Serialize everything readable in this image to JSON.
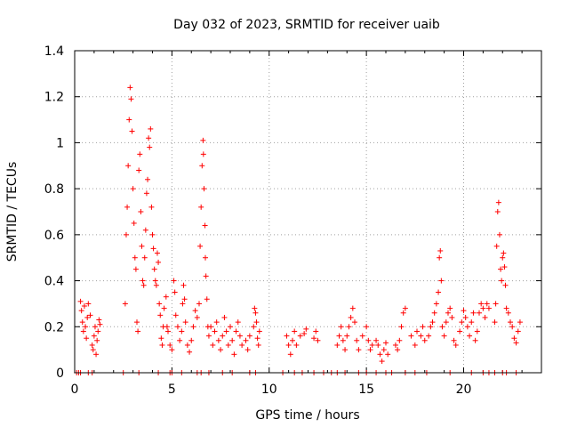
{
  "chart_data": {
    "type": "scatter",
    "title": "Day 032 of 2023, SRMTID for receiver uaib",
    "xlabel": "GPS time / hours",
    "ylabel": "SRMTID / TECUs",
    "xlim": [
      0,
      24
    ],
    "ylim": [
      0,
      1.4
    ],
    "xticks": [
      0,
      5,
      10,
      15,
      20
    ],
    "yticks": [
      0,
      0.2,
      0.4,
      0.6,
      0.8,
      1,
      1.2,
      1.4
    ],
    "xtick_labels": [
      "0",
      "5",
      "10",
      "15",
      "20"
    ],
    "ytick_labels": [
      "0",
      "0.2",
      "0.4",
      "0.6",
      "0.8",
      "1",
      "1.2",
      "1.4"
    ],
    "grid": true,
    "marker": "+",
    "color": "#ff0000",
    "series": [
      {
        "name": "SRMTID",
        "points": [
          [
            0.1,
            0
          ],
          [
            0.2,
            0
          ],
          [
            0.3,
            0
          ],
          [
            0.7,
            0
          ],
          [
            0.9,
            0
          ],
          [
            2.5,
            0
          ],
          [
            3.3,
            0
          ],
          [
            4.3,
            0
          ],
          [
            4.9,
            0
          ],
          [
            5.0,
            0
          ],
          [
            5.5,
            0
          ],
          [
            6.3,
            0
          ],
          [
            6.5,
            0
          ],
          [
            6.9,
            0
          ],
          [
            7.6,
            0
          ],
          [
            8.1,
            0
          ],
          [
            9.0,
            0
          ],
          [
            9.3,
            0
          ],
          [
            10.7,
            0
          ],
          [
            11.3,
            0
          ],
          [
            11.7,
            0
          ],
          [
            12.3,
            0
          ],
          [
            12.8,
            0
          ],
          [
            13.2,
            0
          ],
          [
            13.5,
            0
          ],
          [
            13.9,
            0
          ],
          [
            14.6,
            0
          ],
          [
            15.0,
            0
          ],
          [
            15.5,
            0
          ],
          [
            16.0,
            0
          ],
          [
            16.3,
            0
          ],
          [
            17.0,
            0
          ],
          [
            17.5,
            0
          ],
          [
            18.1,
            0
          ],
          [
            19.3,
            0
          ],
          [
            20.4,
            0
          ],
          [
            21.0,
            0
          ],
          [
            21.3,
            0
          ],
          [
            21.6,
            0
          ],
          [
            22.0,
            0
          ],
          [
            22.2,
            0
          ],
          [
            22.7,
            0
          ],
          [
            0.3,
            0.31
          ],
          [
            0.35,
            0.27
          ],
          [
            0.4,
            0.22
          ],
          [
            0.45,
            0.18
          ],
          [
            0.5,
            0.29
          ],
          [
            0.55,
            0.2
          ],
          [
            0.6,
            0.15
          ],
          [
            0.65,
            0.24
          ],
          [
            0.7,
            0.3
          ],
          [
            0.8,
            0.25
          ],
          [
            0.9,
            0.12
          ],
          [
            0.95,
            0.1
          ],
          [
            1.0,
            0.16
          ],
          [
            1.05,
            0.2
          ],
          [
            1.1,
            0.08
          ],
          [
            1.15,
            0.14
          ],
          [
            1.2,
            0.18
          ],
          [
            1.25,
            0.23
          ],
          [
            1.3,
            0.21
          ],
          [
            2.6,
            0.3
          ],
          [
            2.65,
            0.6
          ],
          [
            2.7,
            0.72
          ],
          [
            2.75,
            0.9
          ],
          [
            2.8,
            1.1
          ],
          [
            2.85,
            1.24
          ],
          [
            2.9,
            1.19
          ],
          [
            2.95,
            1.05
          ],
          [
            3.0,
            0.8
          ],
          [
            3.05,
            0.65
          ],
          [
            3.1,
            0.5
          ],
          [
            3.15,
            0.45
          ],
          [
            3.2,
            0.22
          ],
          [
            3.25,
            0.18
          ],
          [
            3.3,
            0.88
          ],
          [
            3.35,
            0.95
          ],
          [
            3.4,
            0.7
          ],
          [
            3.45,
            0.55
          ],
          [
            3.5,
            0.4
          ],
          [
            3.55,
            0.38
          ],
          [
            3.6,
            0.5
          ],
          [
            3.65,
            0.62
          ],
          [
            3.7,
            0.78
          ],
          [
            3.75,
            0.84
          ],
          [
            3.8,
            1.02
          ],
          [
            3.85,
            0.98
          ],
          [
            3.9,
            1.06
          ],
          [
            3.95,
            0.72
          ],
          [
            4.0,
            0.6
          ],
          [
            4.05,
            0.54
          ],
          [
            4.1,
            0.45
          ],
          [
            4.15,
            0.4
          ],
          [
            4.2,
            0.38
          ],
          [
            4.25,
            0.52
          ],
          [
            4.3,
            0.48
          ],
          [
            4.35,
            0.3
          ],
          [
            4.4,
            0.25
          ],
          [
            4.45,
            0.15
          ],
          [
            4.5,
            0.12
          ],
          [
            4.55,
            0.2
          ],
          [
            4.6,
            0.28
          ],
          [
            4.7,
            0.33
          ],
          [
            4.75,
            0.2
          ],
          [
            4.8,
            0.18
          ],
          [
            4.9,
            0.12
          ],
          [
            5.0,
            0.1
          ],
          [
            5.1,
            0.4
          ],
          [
            5.15,
            0.35
          ],
          [
            5.2,
            0.25
          ],
          [
            5.3,
            0.2
          ],
          [
            5.4,
            0.14
          ],
          [
            5.5,
            0.18
          ],
          [
            5.55,
            0.3
          ],
          [
            5.6,
            0.38
          ],
          [
            5.65,
            0.32
          ],
          [
            5.7,
            0.22
          ],
          [
            5.8,
            0.12
          ],
          [
            5.9,
            0.09
          ],
          [
            6.0,
            0.14
          ],
          [
            6.1,
            0.2
          ],
          [
            6.2,
            0.27
          ],
          [
            6.3,
            0.24
          ],
          [
            6.4,
            0.3
          ],
          [
            6.45,
            0.55
          ],
          [
            6.5,
            0.72
          ],
          [
            6.55,
            0.9
          ],
          [
            6.6,
            1.01
          ],
          [
            6.62,
            0.95
          ],
          [
            6.65,
            0.8
          ],
          [
            6.7,
            0.64
          ],
          [
            6.72,
            0.5
          ],
          [
            6.75,
            0.42
          ],
          [
            6.8,
            0.32
          ],
          [
            6.85,
            0.2
          ],
          [
            6.9,
            0.16
          ],
          [
            7.0,
            0.2
          ],
          [
            7.1,
            0.12
          ],
          [
            7.2,
            0.18
          ],
          [
            7.3,
            0.22
          ],
          [
            7.4,
            0.14
          ],
          [
            7.5,
            0.1
          ],
          [
            7.6,
            0.16
          ],
          [
            7.7,
            0.24
          ],
          [
            7.8,
            0.18
          ],
          [
            7.9,
            0.12
          ],
          [
            8.0,
            0.2
          ],
          [
            8.1,
            0.14
          ],
          [
            8.2,
            0.08
          ],
          [
            8.3,
            0.18
          ],
          [
            8.4,
            0.22
          ],
          [
            8.5,
            0.16
          ],
          [
            8.6,
            0.12
          ],
          [
            8.8,
            0.14
          ],
          [
            8.9,
            0.1
          ],
          [
            9.0,
            0.16
          ],
          [
            9.2,
            0.2
          ],
          [
            9.25,
            0.28
          ],
          [
            9.3,
            0.26
          ],
          [
            9.35,
            0.22
          ],
          [
            9.4,
            0.15
          ],
          [
            9.45,
            0.12
          ],
          [
            9.5,
            0.18
          ],
          [
            10.9,
            0.16
          ],
          [
            11.0,
            0.12
          ],
          [
            11.1,
            0.08
          ],
          [
            11.2,
            0.14
          ],
          [
            11.3,
            0.18
          ],
          [
            11.4,
            0.12
          ],
          [
            11.6,
            0.16
          ],
          [
            11.8,
            0.17
          ],
          [
            11.9,
            0.19
          ],
          [
            12.3,
            0.15
          ],
          [
            12.4,
            0.18
          ],
          [
            12.5,
            0.14
          ],
          [
            13.5,
            0.12
          ],
          [
            13.6,
            0.16
          ],
          [
            13.7,
            0.2
          ],
          [
            13.8,
            0.14
          ],
          [
            13.9,
            0.1
          ],
          [
            14.0,
            0.16
          ],
          [
            14.1,
            0.2
          ],
          [
            14.2,
            0.24
          ],
          [
            14.3,
            0.28
          ],
          [
            14.4,
            0.22
          ],
          [
            14.5,
            0.14
          ],
          [
            14.6,
            0.1
          ],
          [
            14.8,
            0.16
          ],
          [
            15.0,
            0.2
          ],
          [
            15.1,
            0.14
          ],
          [
            15.2,
            0.1
          ],
          [
            15.3,
            0.12
          ],
          [
            15.5,
            0.14
          ],
          [
            15.6,
            0.12
          ],
          [
            15.7,
            0.08
          ],
          [
            15.8,
            0.05
          ],
          [
            15.9,
            0.1
          ],
          [
            16.0,
            0.13
          ],
          [
            16.1,
            0.08
          ],
          [
            16.5,
            0.12
          ],
          [
            16.6,
            0.1
          ],
          [
            16.7,
            0.14
          ],
          [
            16.8,
            0.2
          ],
          [
            16.9,
            0.26
          ],
          [
            17.0,
            0.28
          ],
          [
            17.3,
            0.16
          ],
          [
            17.5,
            0.12
          ],
          [
            17.6,
            0.18
          ],
          [
            17.8,
            0.16
          ],
          [
            17.9,
            0.2
          ],
          [
            18.0,
            0.14
          ],
          [
            18.2,
            0.16
          ],
          [
            18.3,
            0.2
          ],
          [
            18.4,
            0.22
          ],
          [
            18.5,
            0.26
          ],
          [
            18.6,
            0.3
          ],
          [
            18.7,
            0.35
          ],
          [
            18.75,
            0.5
          ],
          [
            18.8,
            0.53
          ],
          [
            18.85,
            0.4
          ],
          [
            18.9,
            0.2
          ],
          [
            19.0,
            0.16
          ],
          [
            19.1,
            0.22
          ],
          [
            19.2,
            0.26
          ],
          [
            19.3,
            0.28
          ],
          [
            19.4,
            0.24
          ],
          [
            19.5,
            0.14
          ],
          [
            19.6,
            0.12
          ],
          [
            19.8,
            0.18
          ],
          [
            19.9,
            0.22
          ],
          [
            20.0,
            0.27
          ],
          [
            20.1,
            0.24
          ],
          [
            20.2,
            0.2
          ],
          [
            20.3,
            0.16
          ],
          [
            20.4,
            0.22
          ],
          [
            20.5,
            0.26
          ],
          [
            20.6,
            0.14
          ],
          [
            20.7,
            0.18
          ],
          [
            20.8,
            0.26
          ],
          [
            20.9,
            0.3
          ],
          [
            21.0,
            0.28
          ],
          [
            21.1,
            0.24
          ],
          [
            21.2,
            0.3
          ],
          [
            21.3,
            0.28
          ],
          [
            21.6,
            0.22
          ],
          [
            21.65,
            0.3
          ],
          [
            21.7,
            0.55
          ],
          [
            21.75,
            0.7
          ],
          [
            21.8,
            0.74
          ],
          [
            21.85,
            0.6
          ],
          [
            21.9,
            0.45
          ],
          [
            21.95,
            0.4
          ],
          [
            22.0,
            0.5
          ],
          [
            22.05,
            0.52
          ],
          [
            22.1,
            0.46
          ],
          [
            22.15,
            0.38
          ],
          [
            22.2,
            0.28
          ],
          [
            22.3,
            0.26
          ],
          [
            22.4,
            0.22
          ],
          [
            22.5,
            0.2
          ],
          [
            22.6,
            0.15
          ],
          [
            22.7,
            0.13
          ],
          [
            22.8,
            0.18
          ],
          [
            22.9,
            0.22
          ]
        ]
      }
    ]
  }
}
